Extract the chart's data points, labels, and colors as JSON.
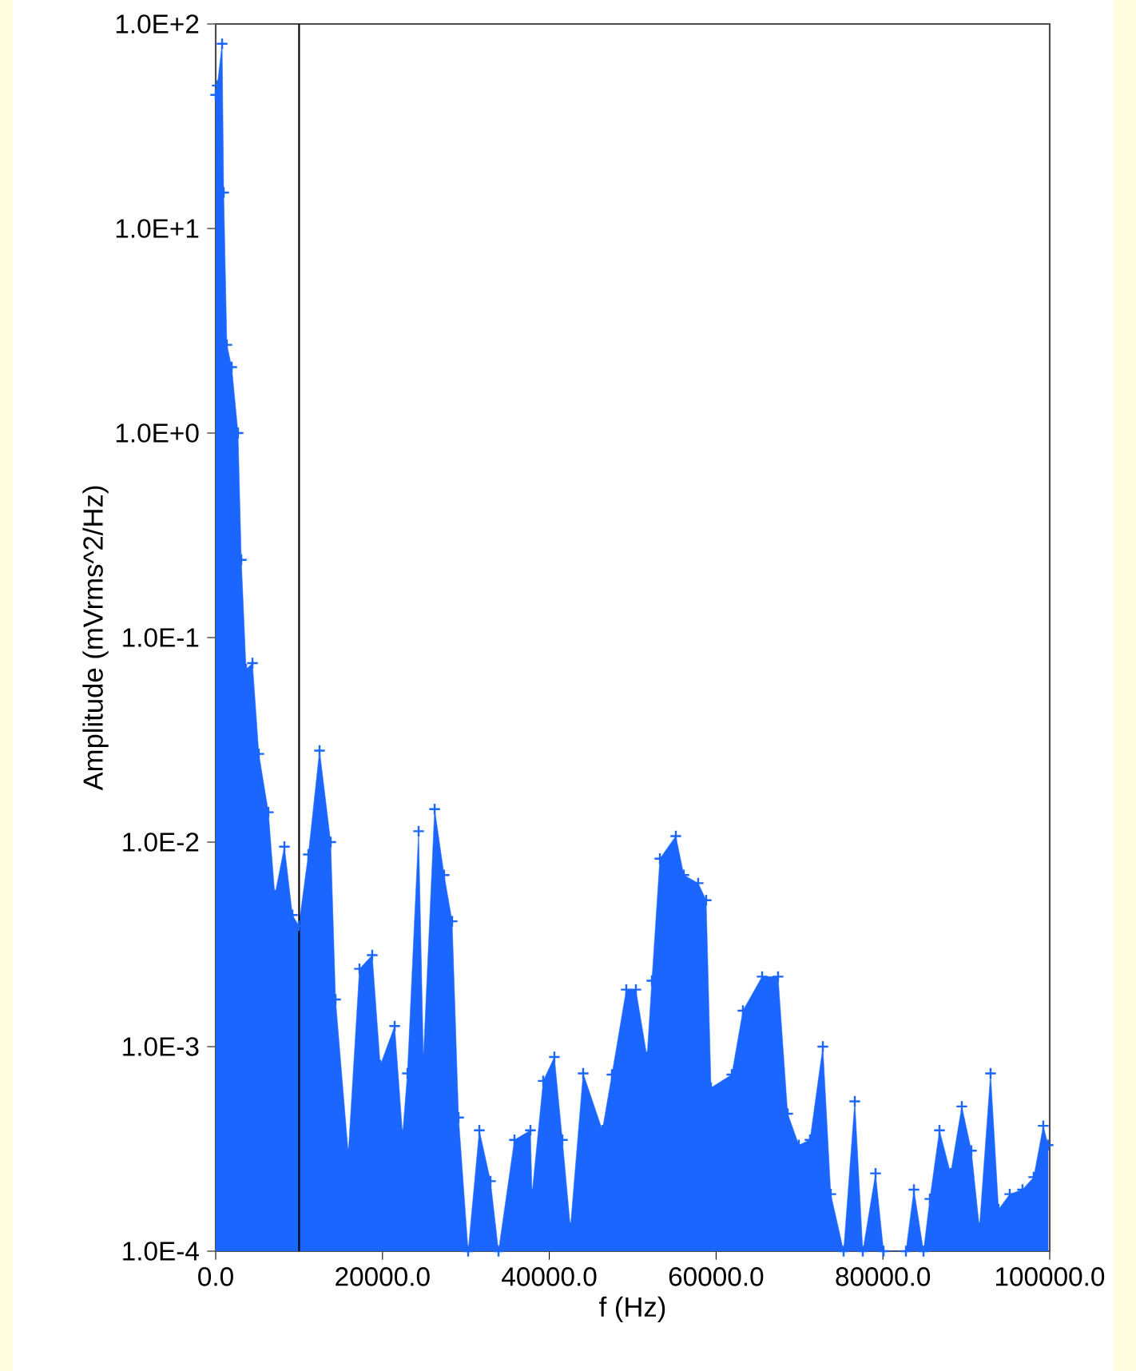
{
  "chart_data": {
    "type": "area",
    "xlabel": "f (Hz)",
    "ylabel": "Amplitude (mVrms^2/Hz)",
    "log": "y",
    "marker": "cross",
    "grid": false,
    "xlim": [
      0,
      100000
    ],
    "ylim": [
      0.0001,
      100
    ],
    "xticks": [
      {
        "value": 0,
        "label": "0.0"
      },
      {
        "value": 20000,
        "label": "20000.0"
      },
      {
        "value": 40000,
        "label": "40000.0"
      },
      {
        "value": 60000,
        "label": "60000.0"
      },
      {
        "value": 80000,
        "label": "80000.0"
      },
      {
        "value": 100000,
        "label": "100000.0"
      }
    ],
    "yticks": [
      {
        "value": 0.0001,
        "label": "1.0E-4"
      },
      {
        "value": 0.001,
        "label": "1.0E-3"
      },
      {
        "value": 0.01,
        "label": "1.0E-2"
      },
      {
        "value": 0.1,
        "label": "1.0E-1"
      },
      {
        "value": 1,
        "label": "1.0E+0"
      },
      {
        "value": 10,
        "label": "1.0E+1"
      },
      {
        "value": 100,
        "label": "1.0E+2"
      }
    ],
    "ref_lines": [
      {
        "axis": "x",
        "value": 10000,
        "color": "#000000"
      }
    ],
    "series": [
      {
        "color": "#1a66ff",
        "x": [
          0,
          190,
          770,
          960,
          1340,
          1920,
          2680,
          3070,
          3640,
          4410,
          5170,
          6320,
          7090,
          8240,
          9200,
          9960,
          11110,
          12450,
          13790,
          14370,
          15900,
          17240,
          18770,
          19730,
          21460,
          22410,
          22990,
          24330,
          24900,
          26250,
          27390,
          28350,
          29120,
          30270,
          31610,
          32950,
          33910,
          35820,
          37740,
          37930,
          39270,
          40610,
          41570,
          42530,
          44060,
          46360,
          47510,
          49230,
          50380,
          51720,
          52300,
          53260,
          55170,
          56130,
          57850,
          58810,
          59390,
          61880,
          63220,
          65520,
          67430,
          68580,
          69920,
          71260,
          72800,
          73750,
          75290,
          76630,
          77590,
          79120,
          80080,
          82760,
          83720,
          84870,
          85630,
          86780,
          88120,
          89460,
          90610,
          91570,
          92910,
          93870,
          95210,
          96740,
          98080,
          99230,
          99810
        ],
        "values": [
          45,
          50,
          80,
          15,
          2.7,
          2.1,
          1.0,
          0.24,
          0.07,
          0.075,
          0.027,
          0.014,
          0.0055,
          0.0095,
          0.0044,
          0.0039,
          0.0087,
          0.028,
          0.01,
          0.0017,
          0.0003,
          0.0024,
          0.0028,
          0.00081,
          0.00126,
          0.00037,
          0.00074,
          0.0113,
          0.00087,
          0.0145,
          0.0069,
          0.0041,
          0.00045,
          0.0001,
          0.00039,
          0.00022,
          0.0001,
          0.00035,
          0.00039,
          0.00019,
          0.00068,
          0.00089,
          0.00035,
          0.00013,
          0.00074,
          0.00039,
          0.00073,
          0.0019,
          0.0019,
          0.00089,
          0.0021,
          0.0083,
          0.0107,
          0.0069,
          0.0063,
          0.0052,
          0.00063,
          0.00073,
          0.0015,
          0.0022,
          0.0022,
          0.00047,
          0.00033,
          0.00035,
          0.001,
          0.00019,
          0.0001,
          0.00054,
          0.0001,
          0.00024,
          0.0001,
          0.0001,
          0.0002,
          0.0001,
          0.00018,
          0.00039,
          0.00024,
          0.00051,
          0.00031,
          0.00013,
          0.00074,
          0.00016,
          0.00019,
          0.0002,
          0.00023,
          0.00041,
          0.00033
        ]
      }
    ]
  }
}
